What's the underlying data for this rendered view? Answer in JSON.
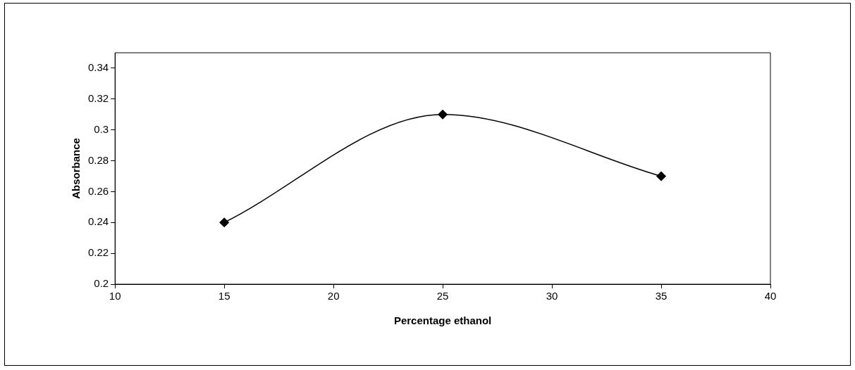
{
  "chart_data": {
    "type": "line",
    "xlabel": "Percentage ethanol",
    "ylabel": "Absorbance",
    "x": [
      15,
      25,
      35
    ],
    "series": [
      {
        "color": "#000000",
        "values": [
          0.24,
          0.31,
          0.27
        ]
      }
    ],
    "xlim": [
      10,
      40
    ],
    "xticks": [
      10,
      15,
      20,
      25,
      30,
      35,
      40
    ],
    "ylim": [
      0.2,
      0.35
    ],
    "yticks": [
      0.2,
      0.22,
      0.24,
      0.26,
      0.28,
      0.3,
      0.32,
      0.34
    ],
    "grid": false,
    "legend": false,
    "marker": "diamond",
    "line_style": "solid"
  }
}
